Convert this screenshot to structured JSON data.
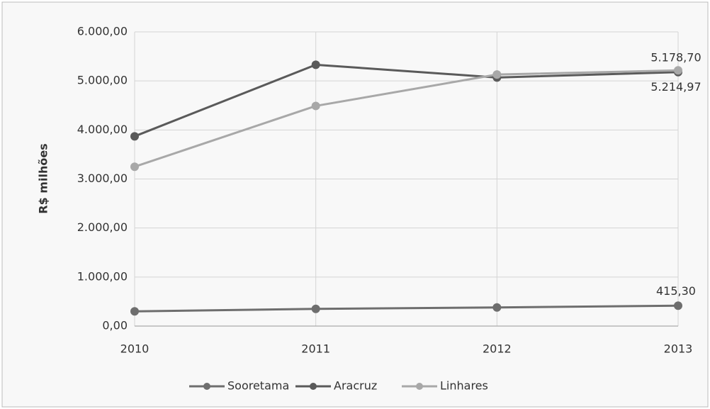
{
  "chart_data": {
    "type": "line",
    "ylabel": "R$ milhões",
    "categories": [
      "2010",
      "2011",
      "2012",
      "2013"
    ],
    "series": [
      {
        "name": "Sooretama",
        "color": "#6e6e6e",
        "values": [
          300,
          350,
          380,
          415.3
        ],
        "value_labels": [
          null,
          null,
          null,
          "415,30"
        ]
      },
      {
        "name": "Aracruz",
        "color": "#5a5a5a",
        "values": [
          3870,
          5330,
          5070,
          5178.7
        ],
        "value_labels": [
          null,
          null,
          null,
          "5.178,70"
        ]
      },
      {
        "name": "Linhares",
        "color": "#a8a8a8",
        "values": [
          3250,
          4490,
          5130,
          5214.97
        ],
        "value_labels": [
          null,
          null,
          null,
          "5.214,97"
        ]
      }
    ],
    "ylim": [
      0,
      6000
    ],
    "yticks": [
      {
        "value": 0,
        "label": "0,00"
      },
      {
        "value": 1000,
        "label": "1.000,00"
      },
      {
        "value": 2000,
        "label": "2.000,00"
      },
      {
        "value": 3000,
        "label": "3.000,00"
      },
      {
        "value": 4000,
        "label": "4.000,00"
      },
      {
        "value": 5000,
        "label": "5.000,00"
      },
      {
        "value": 6000,
        "label": "6.000,00"
      }
    ],
    "grid": true,
    "legend": "bottom"
  }
}
